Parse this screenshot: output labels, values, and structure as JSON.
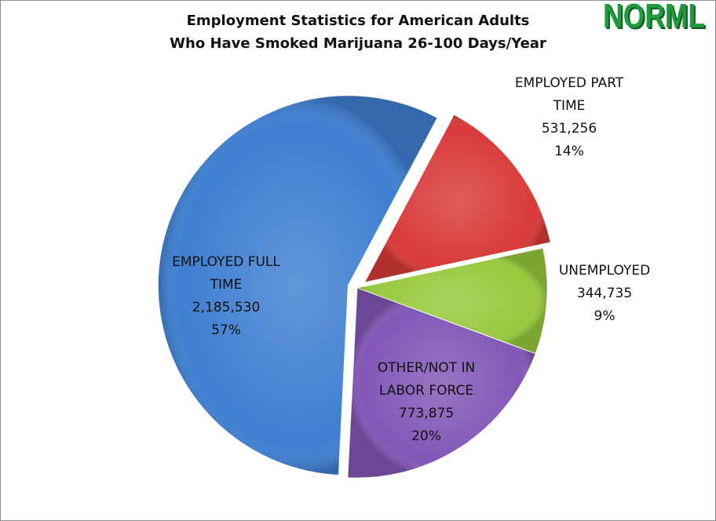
{
  "logo": {
    "text": "NORML",
    "color": "#1f9a3c",
    "shadow": "#0b5a1f"
  },
  "chart_data": {
    "type": "pie",
    "title": "Employment Statistics for American Adults\nWho Have Smoked Marijuana 26-100 Days/Year",
    "title_lines": [
      "Employment Statistics for American Adults",
      "Who Have Smoked Marijuana 26-100 Days/Year"
    ],
    "slices": [
      {
        "label_lines": [
          "EMPLOYED PART",
          "TIME"
        ],
        "value": 531256,
        "value_label": "531,256",
        "percent_label": "14%",
        "color": "#d83a38",
        "exploded": true
      },
      {
        "label_lines": [
          "UNEMPLOYED"
        ],
        "value": 344735,
        "value_label": "344,735",
        "percent_label": "9%",
        "color": "#98c93d",
        "exploded": false
      },
      {
        "label_lines": [
          "OTHER/NOT IN",
          "LABOR FORCE"
        ],
        "value": 773875,
        "value_label": "773,875",
        "percent_label": "20%",
        "color": "#8257b7",
        "exploded": false
      },
      {
        "label_lines": [
          "EMPLOYED FULL",
          "TIME"
        ],
        "value": 2185530,
        "value_label": "2,185,530",
        "percent_label": "57%",
        "color": "#3f7fd1",
        "exploded": true
      }
    ],
    "start_angle_deg": 28
  }
}
